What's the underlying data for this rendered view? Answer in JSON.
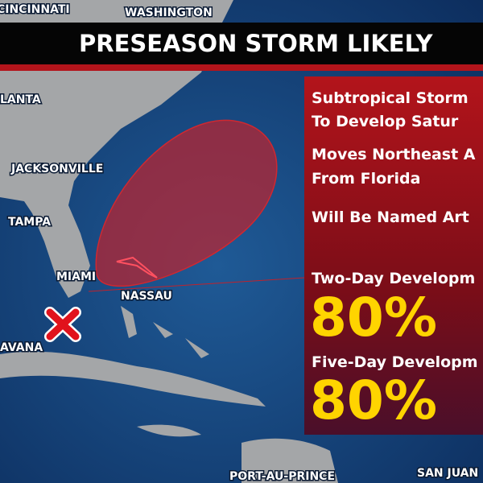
{
  "header": {
    "title": "PRESEASON STORM LIKELY"
  },
  "map": {
    "cities": [
      "CINCINNATI",
      "WASHINGTON",
      "LANTA",
      "JACKSONVILLE",
      "TAMPA",
      "MIAMI",
      "NASSAU",
      "AVANA",
      "PORT-AU-PRINCE",
      "SAN JUAN"
    ]
  },
  "panel": {
    "lines": [
      "Subtropical Storm",
      "To Develop Satur",
      "Moves Northeast A",
      "From Florida",
      "Will Be Named Art"
    ],
    "two_day": {
      "label": "Two-Day Developm",
      "value": "80%"
    },
    "five_day": {
      "label": "Five-Day Developm",
      "value": "80%"
    }
  }
}
